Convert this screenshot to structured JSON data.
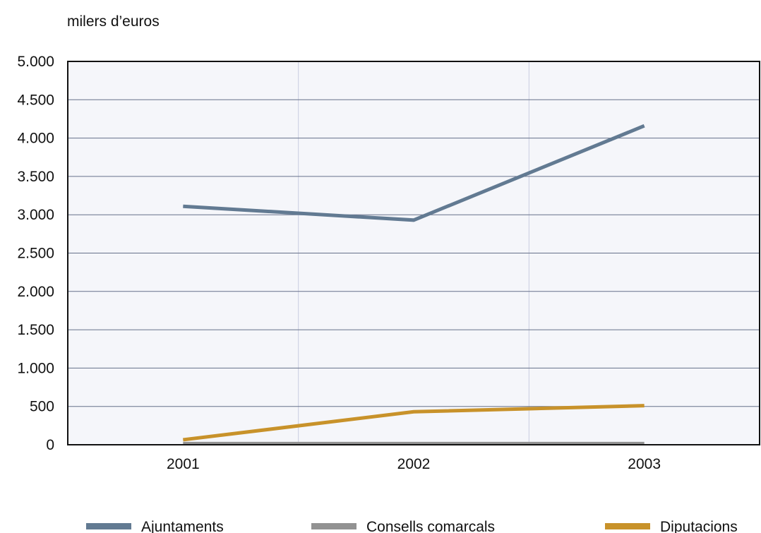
{
  "chart_data": {
    "type": "line",
    "unit_label": "milers d’euros",
    "categories": [
      "2001",
      "2002",
      "2003"
    ],
    "ylim": [
      0,
      5000
    ],
    "yticks": [
      0,
      500,
      1000,
      1500,
      2000,
      2500,
      3000,
      3500,
      4000,
      4500,
      5000
    ],
    "ytick_labels": [
      "0",
      "500",
      "1.000",
      "1.500",
      "2.000",
      "2.500",
      "3.000",
      "3.500",
      "4.000",
      "4.500",
      "5.000"
    ],
    "grid": true,
    "legend_position": "bottom",
    "series": [
      {
        "name": "Ajuntaments",
        "values": [
          3110,
          2930,
          4160
        ],
        "color": "#627a92"
      },
      {
        "name": "Consells comarcals",
        "values": [
          15,
          15,
          15
        ],
        "color": "#929292"
      },
      {
        "name": "Diputacions",
        "values": [
          65,
          430,
          510
        ],
        "color": "#c8922a"
      }
    ],
    "plot_background": "#f5f6fa"
  }
}
